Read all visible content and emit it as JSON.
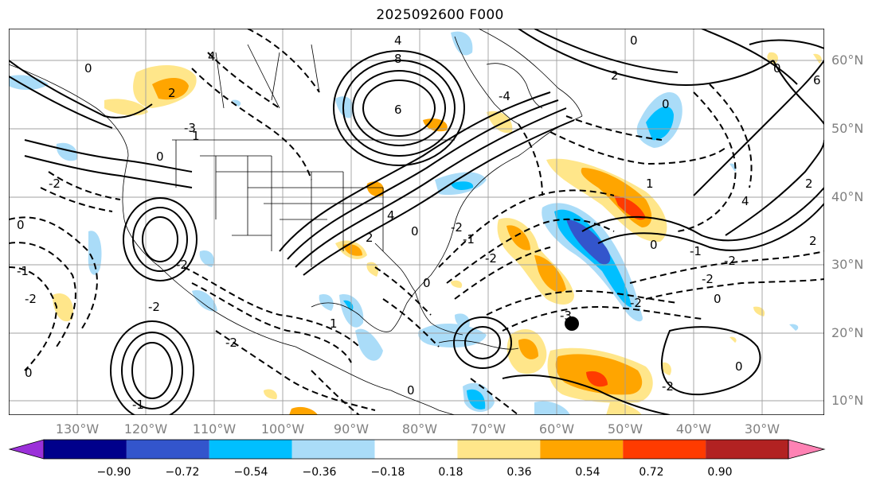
{
  "title": "2025092600 F000",
  "lat_labels": [
    "60°N",
    "50°N",
    "40°N",
    "30°N",
    "20°N",
    "10°N"
  ],
  "lon_labels": [
    "130°W",
    "120°W",
    "110°W",
    "100°W",
    "90°W",
    "80°W",
    "70°W",
    "60°W",
    "50°W",
    "40°W",
    "30°W"
  ],
  "colorbar": {
    "ticks": [
      "−0.90",
      "−0.72",
      "−0.54",
      "−0.36",
      "−0.18",
      "0.18",
      "0.36",
      "0.54",
      "0.72",
      "0.90"
    ],
    "colors": [
      "#9b30d9",
      "#00008b",
      "#3355cc",
      "#00bfff",
      "#aadcf8",
      "#ffffff",
      "#ffe68a",
      "#ffa500",
      "#ff3b00",
      "#b22222",
      "#ff82b4"
    ]
  },
  "contour_labels": [
    "8",
    "6",
    "4",
    "2",
    "0",
    "0",
    "2",
    "4",
    "6",
    "-1",
    "-2",
    "-2",
    "-3",
    "-4",
    "0",
    "1",
    "2",
    "4",
    "0",
    "-2",
    "-1",
    "0",
    "2",
    "-2",
    "0",
    "0",
    "-1",
    "-2",
    "1",
    "-2",
    "-3",
    "-2",
    "0",
    "2",
    "4",
    "-2",
    "0",
    "-2",
    "0",
    "-1",
    "-2",
    "1",
    "0",
    "-2",
    "0",
    "0"
  ],
  "accent": {
    "gridline": "#a0a0a0",
    "coast": "#000000"
  }
}
